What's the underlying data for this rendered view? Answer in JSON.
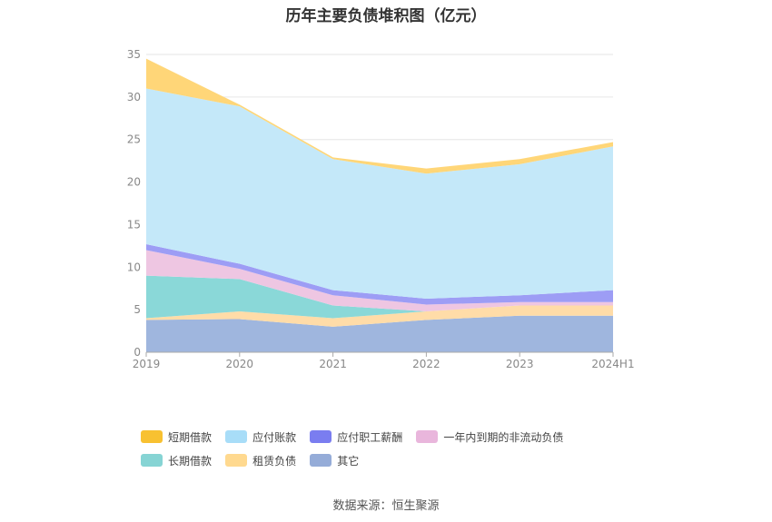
{
  "chart_data": {
    "type": "area",
    "title": "历年主要负债堆积图（亿元）",
    "categories": [
      "2019",
      "2020",
      "2021",
      "2022",
      "2023",
      "2024H1"
    ],
    "ylim": [
      0,
      35
    ],
    "yticks": [
      "0",
      "5",
      "10",
      "15",
      "20",
      "25",
      "30",
      "35"
    ],
    "grid": true,
    "legend_position": "bottom",
    "series": [
      {
        "name": "其它",
        "color": "#9fb6de",
        "values": [
          3.8,
          3.9,
          3.0,
          3.8,
          4.3,
          4.3
        ]
      },
      {
        "name": "租赁负债",
        "color": "#ffdca8",
        "values": [
          0.2,
          0.9,
          1.0,
          1.0,
          1.2,
          1.2
        ]
      },
      {
        "name": "长期借款",
        "color": "#8ad8d8",
        "values": [
          5.0,
          3.8,
          1.5,
          0.0,
          0.0,
          0.0
        ]
      },
      {
        "name": "一年内到期的非流动负债",
        "color": "#eec6e2",
        "values": [
          3.0,
          1.2,
          1.2,
          0.8,
          0.4,
          0.4
        ]
      },
      {
        "name": "应付职工薪酬",
        "color": "#9d9df5",
        "values": [
          0.7,
          0.6,
          0.6,
          0.7,
          0.8,
          1.4
        ]
      },
      {
        "name": "应付账款",
        "color": "#c4e8f9",
        "values": [
          18.3,
          18.5,
          15.4,
          14.7,
          15.4,
          16.9
        ]
      },
      {
        "name": "短期借款",
        "color": "#ffd678",
        "values": [
          3.5,
          0.2,
          0.2,
          0.6,
          0.6,
          0.5
        ]
      }
    ]
  },
  "legend": [
    {
      "label": "短期借款",
      "color": "#f8c131"
    },
    {
      "label": "应付账款",
      "color": "#a8ddf8"
    },
    {
      "label": "应付职工薪酬",
      "color": "#7a7df0"
    },
    {
      "label": "一年内到期的非流动负债",
      "color": "#e9b6dc"
    },
    {
      "label": "长期借款",
      "color": "#86d4d4"
    },
    {
      "label": "租赁负债",
      "color": "#ffd98f"
    },
    {
      "label": "其它",
      "color": "#95acd8"
    }
  ],
  "source": "数据来源：恒生聚源"
}
